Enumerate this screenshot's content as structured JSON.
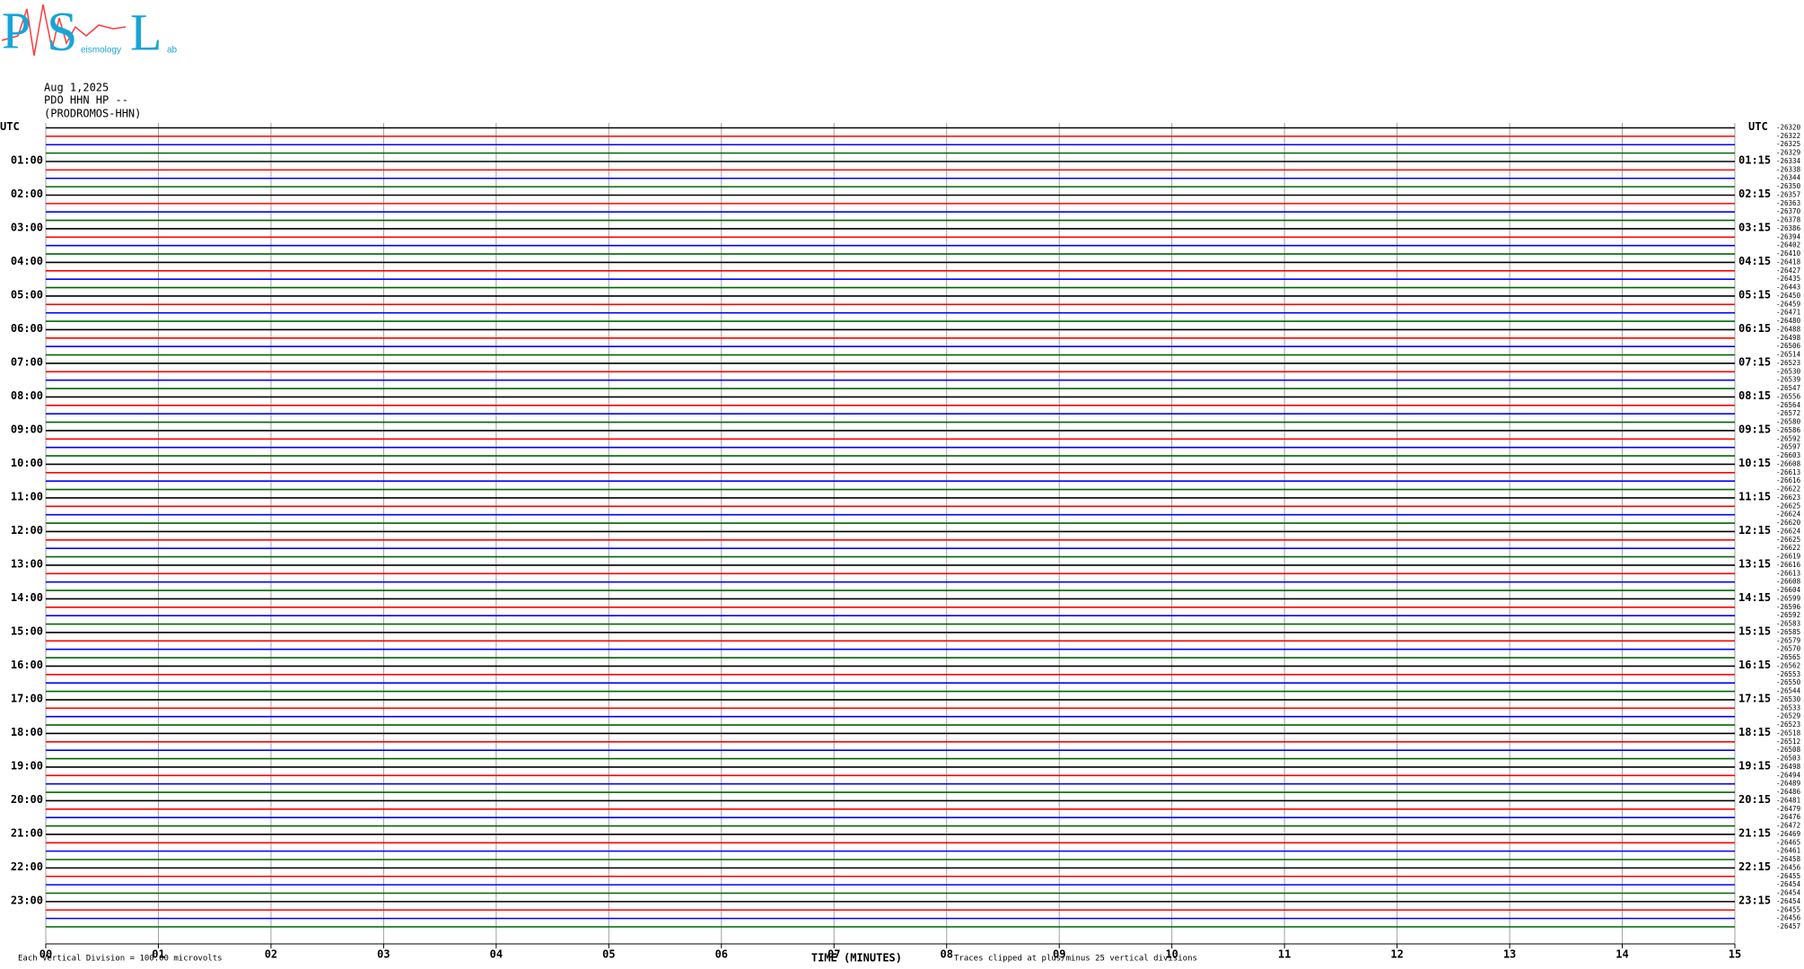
{
  "chart_data": {
    "type": "helicorder",
    "logo": {
      "letters": [
        "P",
        "S",
        "L"
      ],
      "words": [
        "eismology",
        "ab"
      ]
    },
    "header": [
      "Aug 1,2025",
      "PDO HHN HP --",
      "(PRODROMOS-HHN)"
    ],
    "xlabel": "TIME (MINUTES)",
    "scale_note": "Each Vertical Division =  100.00 microvolts",
    "clip_note": "Traces clipped at plus/minus 25 vertical divisions",
    "xlim": [
      0,
      15
    ],
    "xticks": [
      {
        "value": 0,
        "label": "00"
      },
      {
        "value": 1,
        "label": "01"
      },
      {
        "value": 2,
        "label": "02"
      },
      {
        "value": 3,
        "label": "03"
      },
      {
        "value": 4,
        "label": "04"
      },
      {
        "value": 5,
        "label": "05"
      },
      {
        "value": 6,
        "label": "06"
      },
      {
        "value": 7,
        "label": "07"
      },
      {
        "value": 8,
        "label": "08"
      },
      {
        "value": 9,
        "label": "09"
      },
      10,
      11,
      12,
      13,
      14,
      15
    ],
    "grid": true,
    "colors": [
      "#000000",
      "#ff0000",
      "#0000ff",
      "#006400"
    ],
    "left_labels": [
      "UTC",
      "01:00",
      "02:00",
      "03:00",
      "04:00",
      "05:00",
      "06:00",
      "07:00",
      "08:00",
      "09:00",
      "10:00",
      "11:00",
      "12:00",
      "13:00",
      "14:00",
      "15:00",
      "16:00",
      "17:00",
      "18:00",
      "19:00",
      "20:00",
      "21:00",
      "22:00",
      "23:00"
    ],
    "right_labels": [
      "UTC",
      "01:15",
      "02:15",
      "03:15",
      "04:15",
      "05:15",
      "06:15",
      "07:15",
      "08:15",
      "09:15",
      "10:15",
      "11:15",
      "12:15",
      "13:15",
      "14:15",
      "15:15",
      "16:15",
      "17:15",
      "18:15",
      "19:15",
      "20:15",
      "21:15",
      "22:15",
      "23:15"
    ],
    "offsets": [
      -26320,
      -26322,
      -26325,
      -26329,
      -26334,
      -26338,
      -26344,
      -26350,
      -26357,
      -26363,
      -26370,
      -26378,
      -26386,
      -26394,
      -26402,
      -26410,
      -26418,
      -26427,
      -26435,
      -26443,
      -26450,
      -26459,
      -26471,
      -26480,
      -26488,
      -26498,
      -26506,
      -26514,
      -26523,
      -26530,
      -26539,
      -26547,
      -26556,
      -26564,
      -26572,
      -26580,
      -26586,
      -26592,
      -26597,
      -26603,
      -26608,
      -26613,
      -26616,
      -26622,
      -26623,
      -26625,
      -26624,
      -26620,
      -26624,
      -26625,
      -26622,
      -26619,
      -26616,
      -26613,
      -26608,
      -26604,
      -26599,
      -26596,
      -26592,
      -26583,
      -26585,
      -26579,
      -26570,
      -26565,
      -26562,
      -26553,
      -26550,
      -26544,
      -26530,
      -26533,
      -26529,
      -26523,
      -26518,
      -26512,
      -26508,
      -26503,
      -26498,
      -26494,
      -26489,
      -26486,
      -26481,
      -26479,
      -26476,
      -26472,
      -26469,
      -26465,
      -26461,
      -26458,
      -26456,
      -26455,
      -26454,
      -26454,
      -26454,
      -26455,
      -26456,
      -26457
    ]
  }
}
